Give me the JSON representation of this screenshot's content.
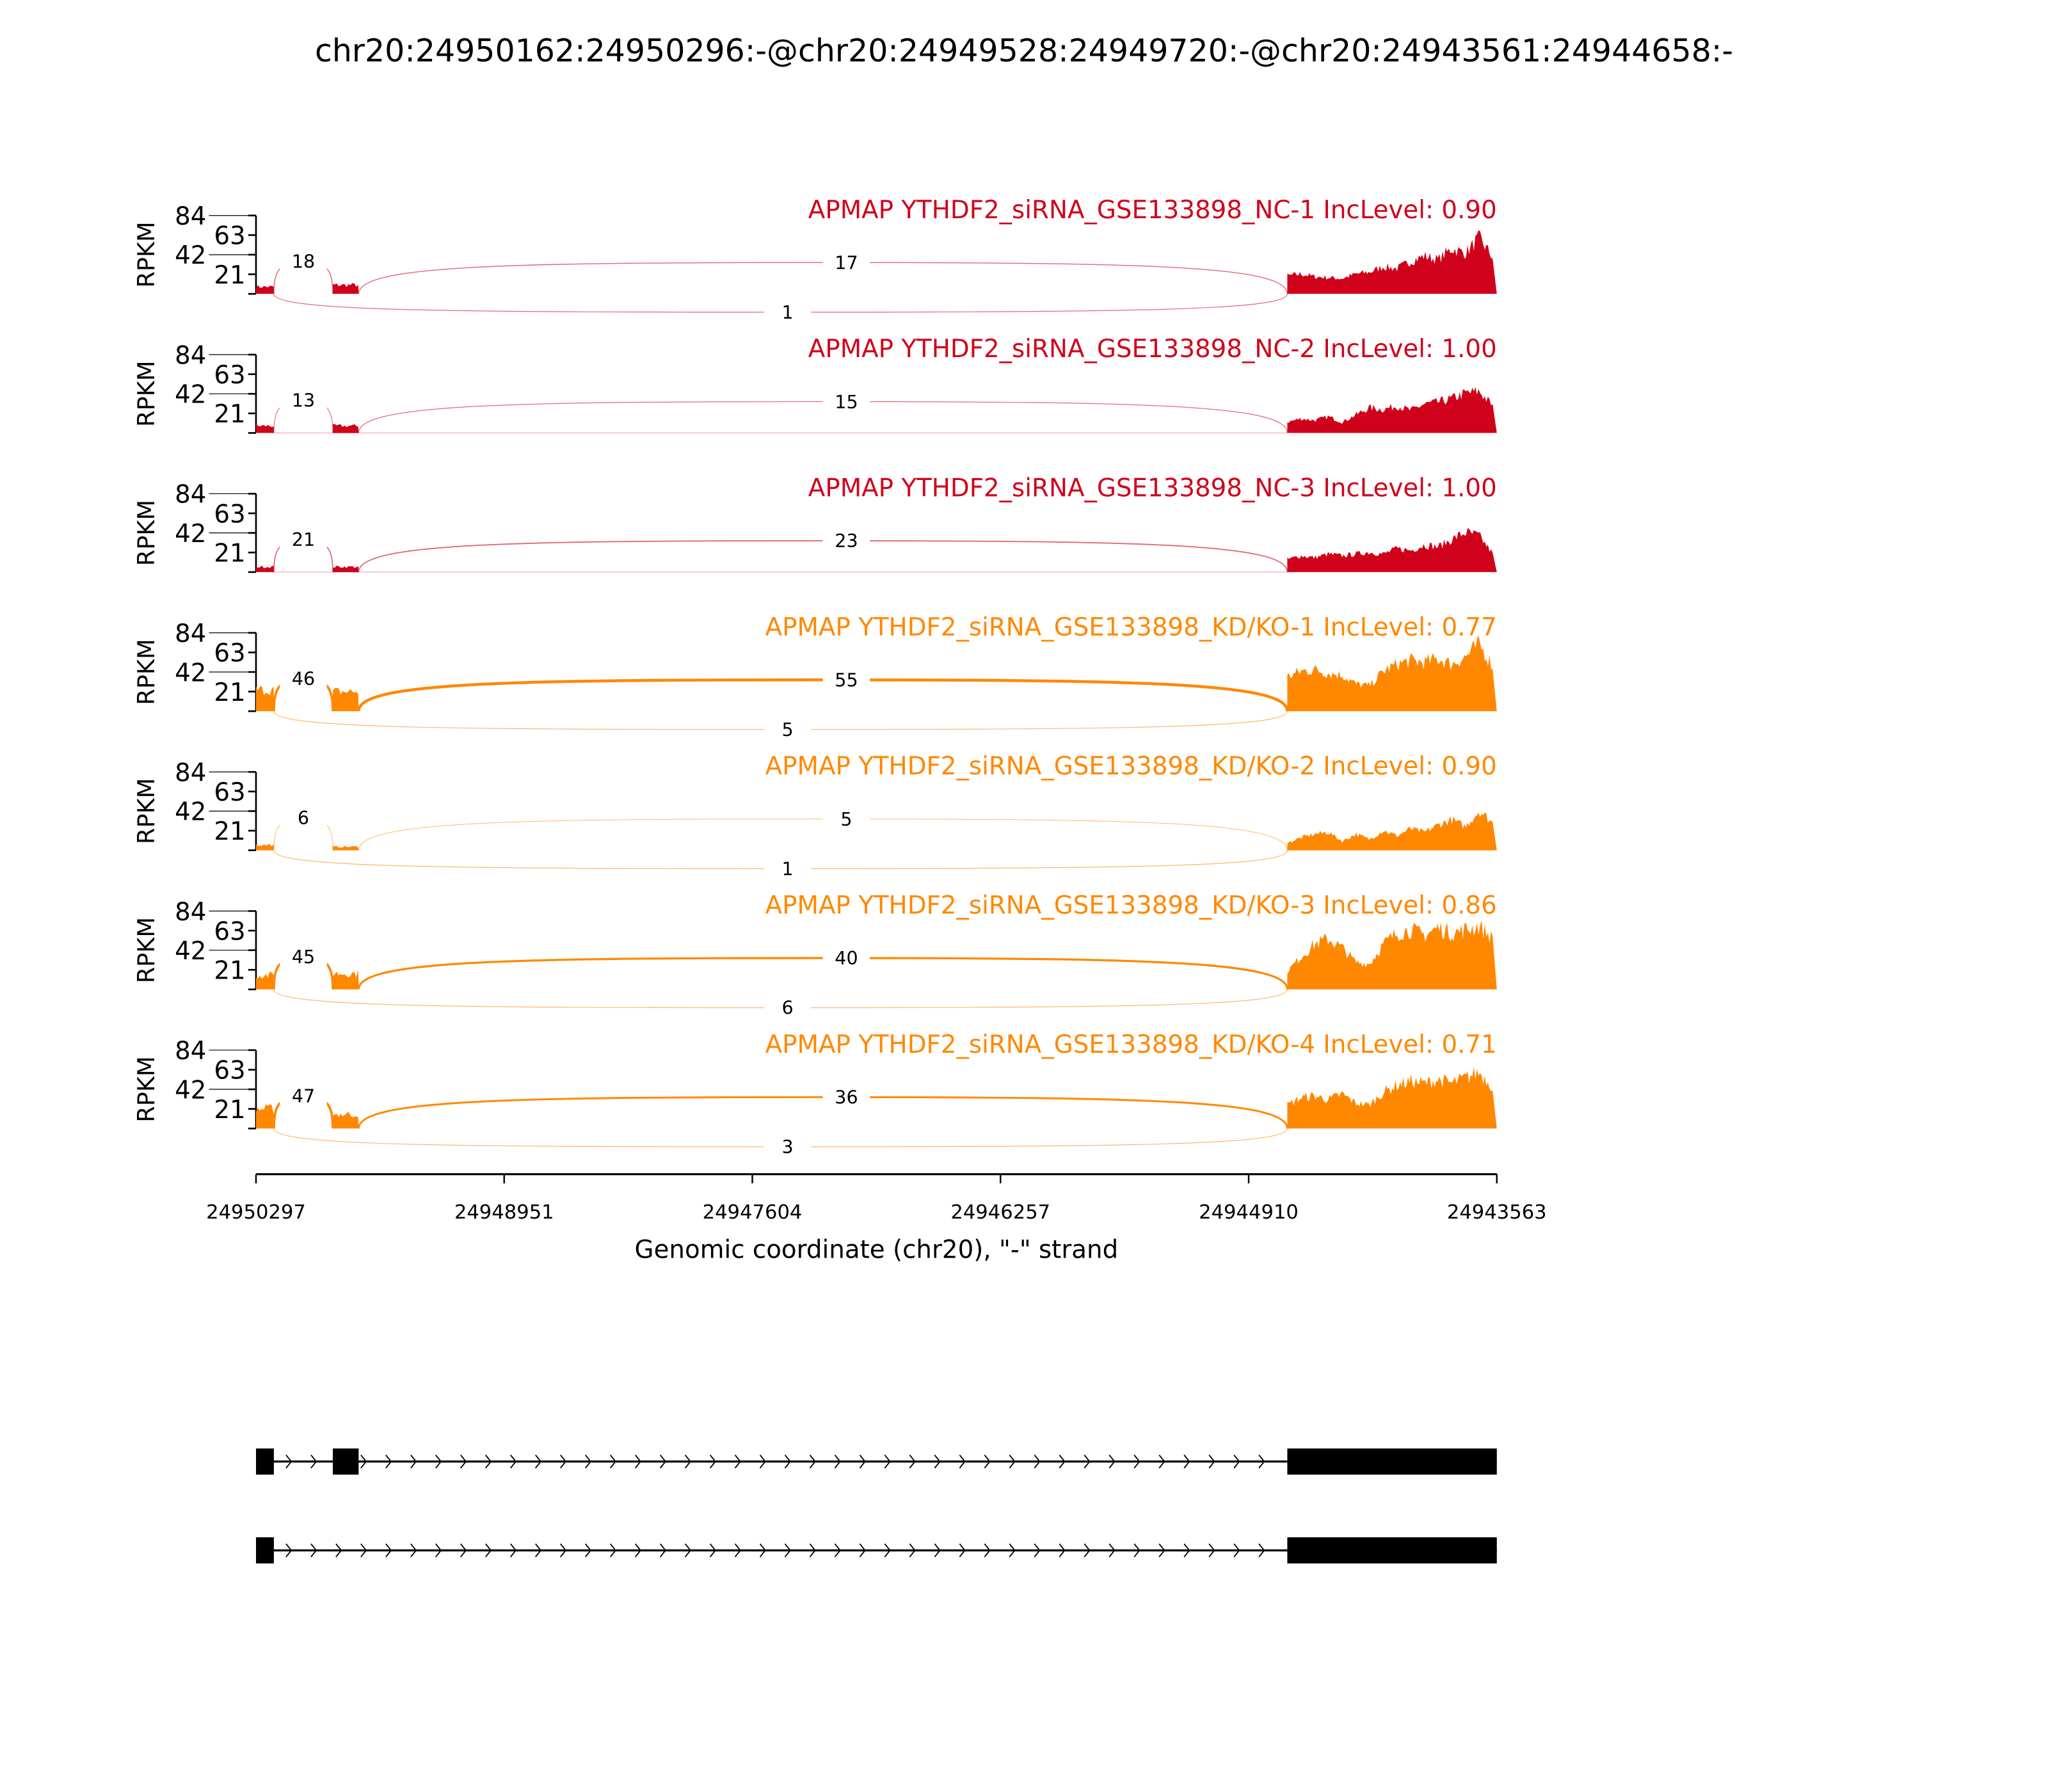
{
  "chart_data": {
    "type": "sashimi",
    "title": "chr20:24950162:24950296:-@chr20:24949528:24949720:-@chr20:24943561:24944658:-",
    "xlabel": "Genomic coordinate (chr20), \"-\" strand",
    "ylabel": "RPKM",
    "xlim": [
      24950297,
      24943563
    ],
    "xticks": [
      "24950297",
      "24948951",
      "24947604",
      "24946257",
      "24944910",
      "24943563"
    ],
    "ylim": [
      0,
      84
    ],
    "yticks": [
      "21",
      "42",
      "63",
      "84"
    ],
    "colors": {
      "NC": "#d0021b",
      "KD": "#ff8800"
    },
    "exons": [
      [
        24950297,
        24950200
      ],
      [
        24949880,
        24949740
      ],
      [
        24944700,
        24943563
      ]
    ],
    "samples": [
      {
        "label": "APMAP YTHDF2_siRNA_GSE133898_NC-1 IncLevel: 0.90",
        "group": "NC",
        "junctions": {
          "upper_short": "18",
          "upper_long": "17",
          "lower": "1"
        },
        "exon1": 8,
        "exon2": 10,
        "exon3": [
          20,
          22,
          19,
          18,
          17,
          22,
          24,
          30,
          28,
          36,
          42,
          38,
          50,
          45,
          62,
          40
        ]
      },
      {
        "label": "APMAP YTHDF2_siRNA_GSE133898_NC-2 IncLevel: 1.00",
        "group": "NC",
        "junctions": {
          "upper_short": "13",
          "upper_long": "15",
          "lower": ""
        },
        "exon1": 8,
        "exon2": 8,
        "exon3": [
          12,
          16,
          14,
          18,
          12,
          20,
          28,
          26,
          30,
          25,
          32,
          34,
          38,
          44,
          46,
          30
        ]
      },
      {
        "label": "APMAP YTHDF2_siRNA_GSE133898_NC-3 IncLevel: 1.00",
        "group": "NC",
        "junctions": {
          "upper_short": "21",
          "upper_long": "23",
          "lower": ""
        },
        "exon1": 6,
        "exon2": 6,
        "exon3": [
          14,
          18,
          16,
          20,
          18,
          20,
          22,
          20,
          26,
          24,
          30,
          28,
          36,
          44,
          40,
          20
        ]
      },
      {
        "label": "APMAP YTHDF2_siRNA_GSE133898_KD/KO-1 IncLevel: 0.77",
        "group": "KD",
        "junctions": {
          "upper_short": "46",
          "upper_long": "55",
          "lower": "5"
        },
        "exon1": 24,
        "exon2": 22,
        "exon3": [
          38,
          44,
          46,
          42,
          40,
          30,
          28,
          44,
          52,
          56,
          54,
          58,
          52,
          60,
          74,
          50
        ]
      },
      {
        "label": "APMAP YTHDF2_siRNA_GSE133898_KD/KO-2 IncLevel: 0.90",
        "group": "KD",
        "junctions": {
          "upper_short": "6",
          "upper_long": "5",
          "lower": "1"
        },
        "exon1": 6,
        "exon2": 4,
        "exon3": [
          8,
          14,
          18,
          20,
          10,
          18,
          12,
          22,
          16,
          24,
          20,
          28,
          34,
          26,
          44,
          30
        ]
      },
      {
        "label": "APMAP YTHDF2_siRNA_GSE133898_KD/KO-3 IncLevel: 0.86",
        "group": "KD",
        "junctions": {
          "upper_short": "45",
          "upper_long": "40",
          "lower": "6"
        },
        "exon1": 16,
        "exon2": 18,
        "exon3": [
          20,
          36,
          50,
          56,
          46,
          30,
          28,
          50,
          62,
          66,
          60,
          68,
          62,
          66,
          70,
          56
        ]
      },
      {
        "label": "APMAP YTHDF2_siRNA_GSE133898_KD/KO-4 IncLevel: 0.71",
        "group": "KD",
        "junctions": {
          "upper_short": "47",
          "upper_long": "36",
          "lower": "3"
        },
        "exon1": 22,
        "exon2": 16,
        "exon3": [
          26,
          34,
          36,
          32,
          38,
          28,
          26,
          40,
          48,
          52,
          50,
          54,
          50,
          56,
          62,
          46
        ]
      }
    ],
    "transcripts": [
      {
        "exons": [
          [
            24950297,
            24950200
          ],
          [
            24949880,
            24949740
          ],
          [
            24944700,
            24943563
          ]
        ]
      },
      {
        "exons": [
          [
            24950297,
            24950200
          ],
          [
            24944700,
            24943563
          ]
        ]
      }
    ]
  }
}
